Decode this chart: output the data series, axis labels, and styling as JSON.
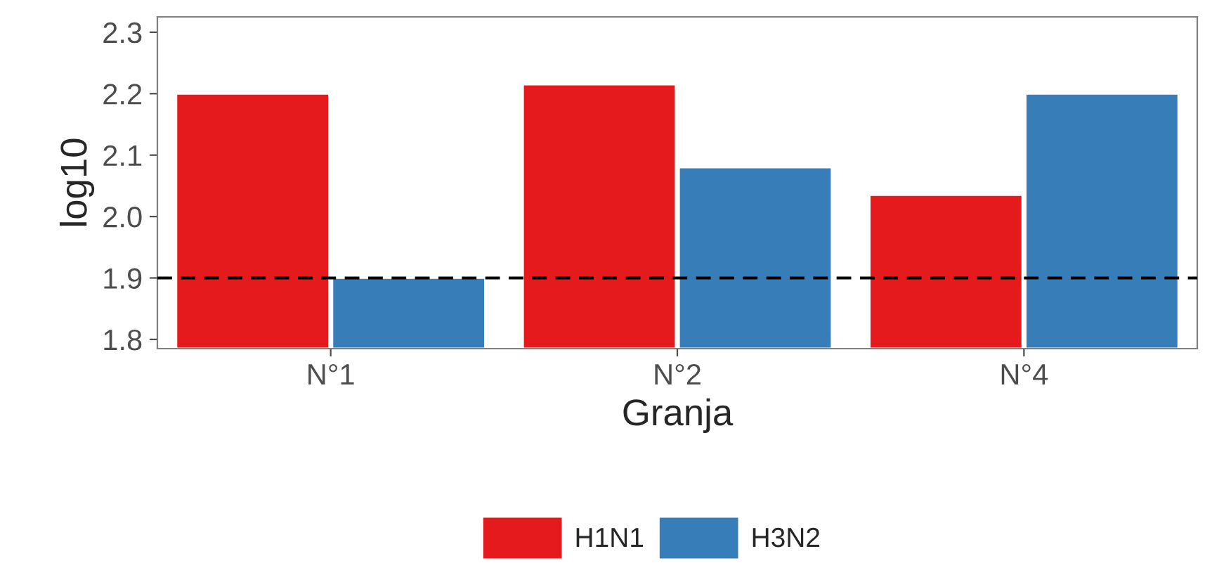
{
  "chart_data": {
    "type": "bar",
    "xlabel": "Granja",
    "ylabel": "log10",
    "categories": [
      "N°1",
      "N°2",
      "N°4"
    ],
    "series": [
      {
        "name": "H1N1",
        "color": "#e41a1c",
        "values": [
          2.2,
          2.215,
          2.035
        ]
      },
      {
        "name": "H3N2",
        "color": "#377eb8",
        "values": [
          1.9,
          2.08,
          2.2
        ]
      }
    ],
    "ylim": [
      1.785,
      2.325
    ],
    "yticks": [
      1.8,
      1.9,
      {
        "value": 2,
        "label": "2.0"
      },
      2.1,
      2.2,
      2.3
    ],
    "ref_lines": [
      {
        "axis": "y",
        "value": 1.9,
        "line_style": "dashed",
        "color": "#000000"
      }
    ],
    "legend": "bottom",
    "grid": false
  }
}
